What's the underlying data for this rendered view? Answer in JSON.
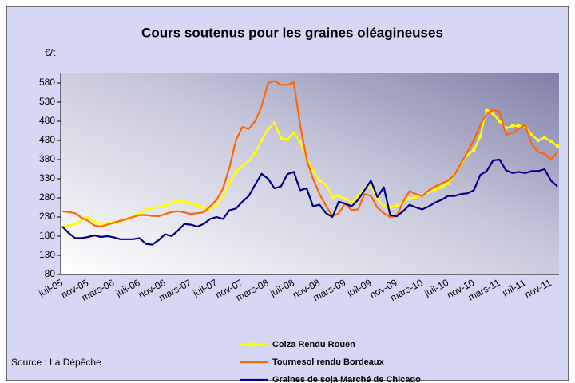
{
  "chart_data": {
    "type": "line",
    "title": "Cours soutenus pour les graines oléagineuses",
    "y_label": "€/t",
    "source": "Source : La Dépêche",
    "categories": [
      "juil-05",
      null,
      null,
      null,
      "nov-05",
      null,
      null,
      null,
      "mars-06",
      null,
      null,
      null,
      "juil-06",
      null,
      null,
      null,
      "nov-06",
      null,
      null,
      null,
      "mars-07",
      null,
      null,
      null,
      "juil-07",
      null,
      null,
      null,
      "nov-07",
      null,
      null,
      null,
      "mars-08",
      null,
      null,
      null,
      "juil-08",
      null,
      null,
      null,
      "nov-08",
      null,
      null,
      null,
      "mars-09",
      null,
      null,
      null,
      "juil-09",
      null,
      null,
      null,
      "nov-09",
      null,
      null,
      null,
      "mars-10",
      null,
      null,
      null,
      "juil-10",
      null,
      null,
      null,
      "nov-10",
      null,
      null,
      null,
      "mars-11",
      null,
      null,
      null,
      "juil-11",
      null,
      null,
      null,
      "nov-11",
      null
    ],
    "series": [
      {
        "name": "Colza Rendu Rouen",
        "color": "#ffff00",
        "markers": true,
        "values": [
          205,
          208,
          212,
          222,
          228,
          218,
          212,
          213,
          216,
          220,
          225,
          232,
          240,
          248,
          253,
          257,
          260,
          268,
          272,
          270,
          266,
          260,
          254,
          252,
          262,
          285,
          318,
          348,
          362,
          378,
          398,
          430,
          460,
          475,
          435,
          432,
          450,
          425,
          385,
          350,
          325,
          315,
          282,
          285,
          278,
          268,
          285,
          305,
          310,
          278,
          258,
          255,
          260,
          270,
          278,
          282,
          288,
          295,
          302,
          308,
          318,
          340,
          368,
          392,
          405,
          440,
          510,
          500,
          480,
          462,
          468,
          468,
          465,
          445,
          430,
          438,
          428,
          415
        ]
      },
      {
        "name": "Tournesol rendu Bordeaux",
        "color": "#ff6600",
        "markers": false,
        "values": [
          245,
          243,
          240,
          228,
          220,
          208,
          205,
          210,
          215,
          220,
          225,
          230,
          235,
          235,
          233,
          232,
          238,
          243,
          245,
          242,
          238,
          240,
          242,
          258,
          275,
          305,
          360,
          430,
          465,
          460,
          480,
          520,
          580,
          585,
          575,
          575,
          582,
          470,
          380,
          330,
          290,
          260,
          232,
          240,
          265,
          248,
          250,
          290,
          285,
          255,
          240,
          230,
          232,
          270,
          298,
          290,
          285,
          300,
          310,
          318,
          325,
          340,
          370,
          400,
          430,
          470,
          500,
          510,
          505,
          445,
          450,
          460,
          470,
          420,
          400,
          395,
          380,
          400
        ]
      },
      {
        "name": "Graines de soja Marché de Chicago",
        "color": "#000080",
        "markers": false,
        "values": [
          205,
          188,
          175,
          175,
          178,
          182,
          178,
          180,
          177,
          172,
          172,
          172,
          175,
          160,
          158,
          170,
          185,
          180,
          195,
          212,
          210,
          205,
          212,
          225,
          230,
          225,
          248,
          252,
          270,
          285,
          315,
          343,
          330,
          305,
          310,
          342,
          348,
          300,
          305,
          258,
          262,
          240,
          230,
          270,
          265,
          258,
          275,
          300,
          325,
          282,
          308,
          235,
          232,
          245,
          262,
          255,
          250,
          258,
          268,
          275,
          285,
          285,
          290,
          292,
          300,
          340,
          350,
          378,
          380,
          352,
          345,
          348,
          345,
          350,
          350,
          355,
          325,
          310
        ]
      }
    ],
    "ylim": [
      80,
      605
    ],
    "yticks": [
      80,
      130,
      180,
      230,
      280,
      330,
      380,
      430,
      480,
      530,
      580
    ],
    "grid": false,
    "legend": "bottom"
  }
}
